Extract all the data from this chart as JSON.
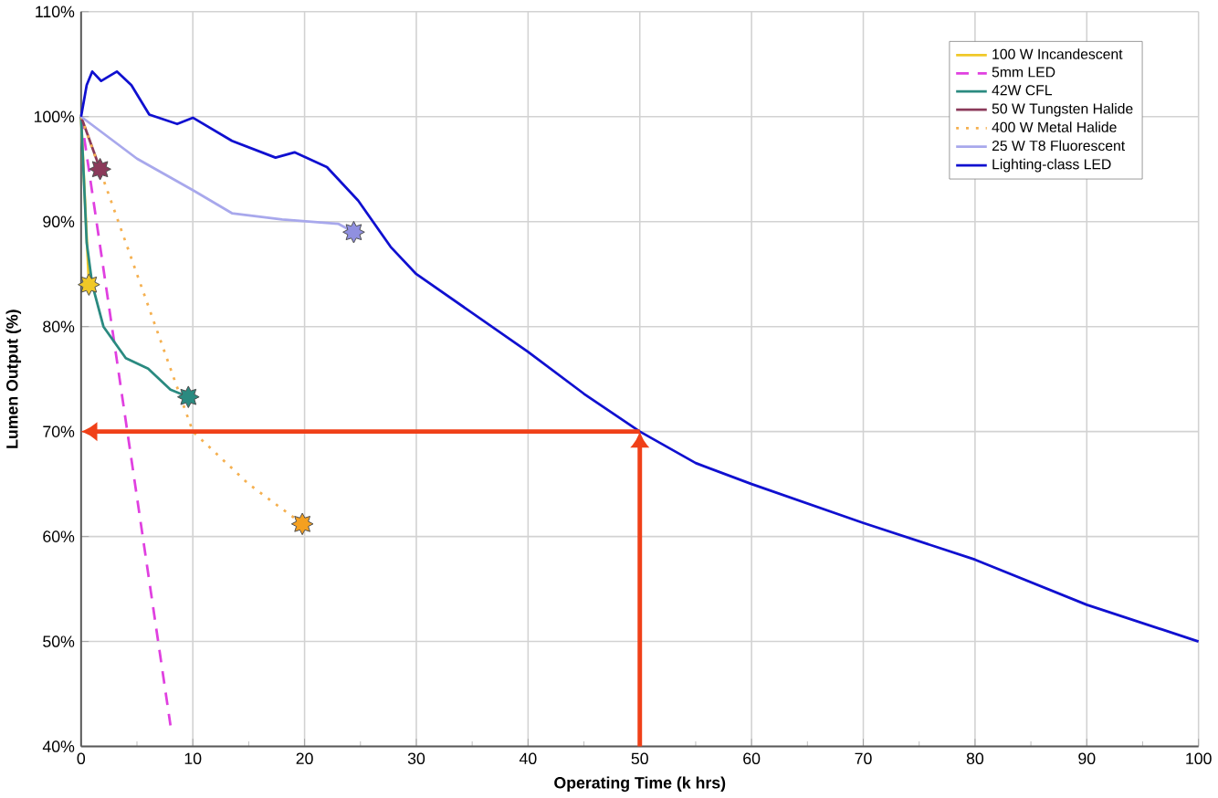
{
  "chart_data": {
    "type": "line",
    "xlabel": "Operating Time (k hrs)",
    "ylabel": "Lumen Output (%)",
    "xlim": [
      0,
      100
    ],
    "xticks": [
      0,
      10,
      20,
      30,
      40,
      50,
      60,
      70,
      80,
      90,
      100
    ],
    "ylim": [
      40,
      110
    ],
    "yticks": [
      {
        "value": 40,
        "label": "40%"
      },
      {
        "value": 50,
        "label": "50%"
      },
      {
        "value": 60,
        "label": "60%"
      },
      {
        "value": 70,
        "label": "70%"
      },
      {
        "value": 80,
        "label": "80%"
      },
      {
        "value": 90,
        "label": "90%"
      },
      {
        "value": 100,
        "label": "100%"
      },
      {
        "value": 110,
        "label": "110%"
      }
    ],
    "grid": true,
    "legend": "top right",
    "marker": "none",
    "series": [
      {
        "name": "100 W Incandescent",
        "color": "#f0c828",
        "x": [
          0,
          0.7
        ],
        "values": [
          100,
          84
        ]
      },
      {
        "name": "5mm LED",
        "color": "#e040e0",
        "line_style": "dashed",
        "x": [
          0,
          8
        ],
        "values": [
          100,
          42
        ]
      },
      {
        "name": "42W CFL",
        "color": "#2a8a80",
        "x": [
          0,
          0.5,
          1,
          2,
          4,
          6,
          8,
          9.6
        ],
        "values": [
          100,
          88,
          84,
          80,
          77,
          76,
          74,
          73.3
        ]
      },
      {
        "name": "50 W Tungsten Halide",
        "color": "#8b3a5a",
        "x": [
          0,
          1.7
        ],
        "values": [
          100,
          95
        ]
      },
      {
        "name": "400 W Metal Halide",
        "color": "#f5b050",
        "line_style": "dotted",
        "x": [
          0,
          5,
          10,
          15,
          19.8
        ],
        "values": [
          100,
          85,
          70,
          65,
          61.2
        ]
      },
      {
        "name": "25 W T8 Fluorescent",
        "color": "#a8a8ec",
        "x": [
          0,
          5,
          10,
          13.5,
          18,
          23,
          24.4
        ],
        "values": [
          100,
          96,
          93,
          90.8,
          90.2,
          89.8,
          89
        ]
      },
      {
        "name": "Lighting-class LED",
        "color": "#1010d0",
        "x": [
          0,
          0.5,
          1,
          1.8,
          3.2,
          4.5,
          6.1,
          8.6,
          10,
          13.5,
          17.4,
          19.1,
          22,
          24.8,
          27.7,
          30,
          35,
          40,
          45,
          50,
          55,
          60,
          70,
          80,
          90,
          100
        ],
        "values": [
          100,
          103,
          104.3,
          103.4,
          104.3,
          103,
          100.2,
          99.3,
          99.9,
          97.7,
          96.1,
          96.6,
          95.2,
          92,
          87.6,
          85,
          81.3,
          77.6,
          73.6,
          70,
          67,
          65,
          61.3,
          57.8,
          53.5,
          50
        ]
      },
      {
        "type": "scatter",
        "marker": "star",
        "color": "#f0c828",
        "x": [
          0.7
        ],
        "values": [
          84
        ]
      },
      {
        "type": "scatter",
        "marker": "star",
        "color": "#8b3a5a",
        "x": [
          1.7
        ],
        "values": [
          95
        ]
      },
      {
        "type": "scatter",
        "marker": "star",
        "color": "#2a8a80",
        "x": [
          9.6
        ],
        "values": [
          73.3
        ]
      },
      {
        "type": "scatter",
        "marker": "star",
        "color": "#f5a020",
        "x": [
          19.8
        ],
        "values": [
          61.2
        ]
      },
      {
        "type": "scatter",
        "marker": "star",
        "color": "#9090e0",
        "x": [
          24.4
        ],
        "values": [
          89
        ]
      }
    ],
    "ref_lines": [
      {
        "axis": "y",
        "value": 70,
        "color": "#f04018"
      },
      {
        "axis": "x",
        "value": 50,
        "color": "#f04018"
      }
    ]
  }
}
